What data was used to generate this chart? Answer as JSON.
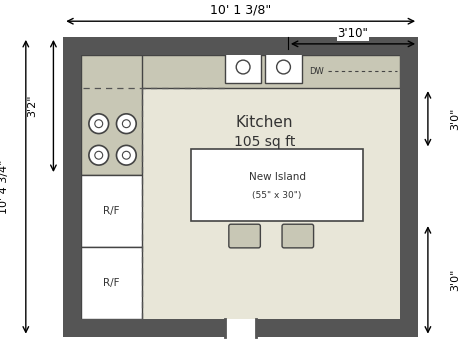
{
  "fig_width": 4.73,
  "fig_height": 3.55,
  "bg_color": "#ffffff",
  "wall_color": "#555555",
  "floor_color": "#e8e6d8",
  "wall_thickness": 0.18,
  "title_top": "10' 1 3/8\"",
  "dim_right_top_label": "3'10\"",
  "dim_left_top": "3'2\"",
  "dim_left_full": "10' 4 3/4\"",
  "dim_right_top": "3'0\"",
  "dim_right_bottom": "3'0\"",
  "kitchen_label": "Kitchen",
  "kitchen_sqft": "105 sq ft",
  "island_label": "New Island",
  "island_size": "(55\" x 30\")",
  "rf_label": "R/F",
  "dw_label": "DW"
}
